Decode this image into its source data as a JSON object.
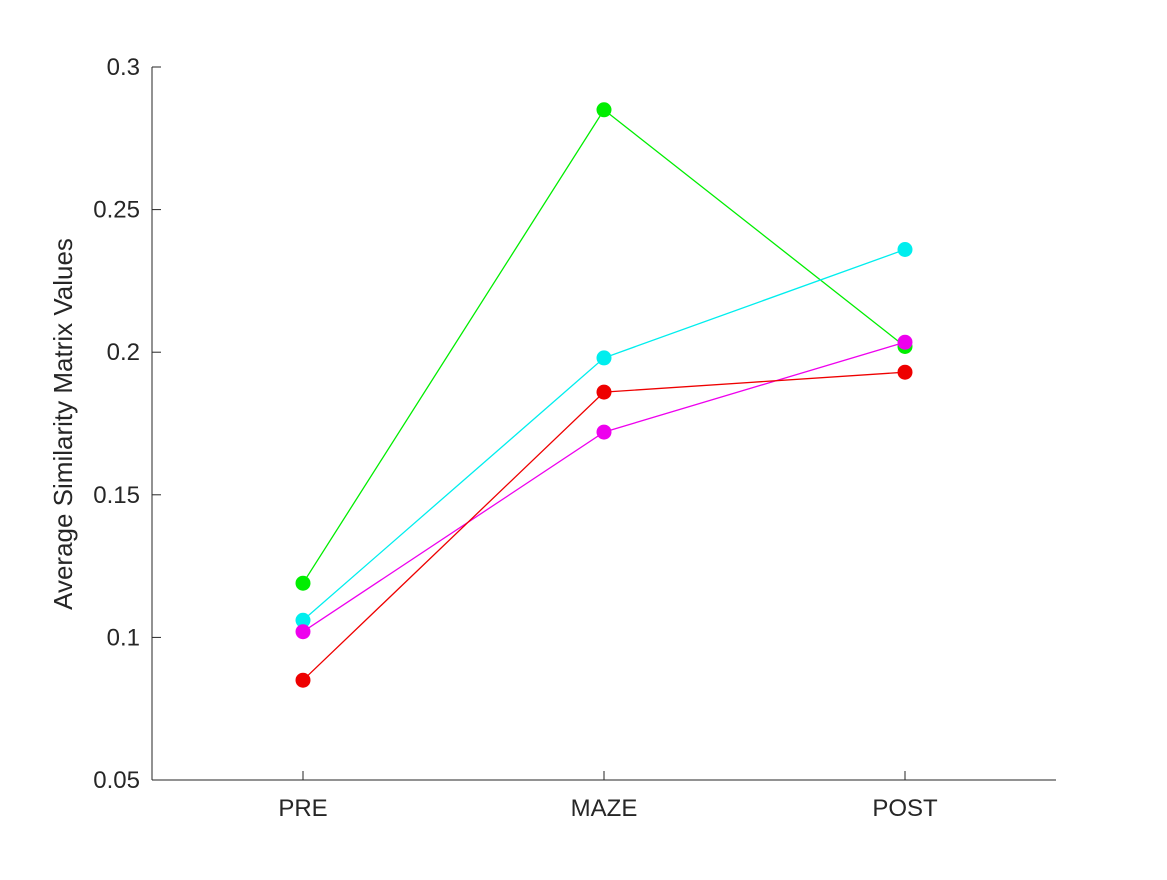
{
  "chart_data": {
    "type": "line",
    "title": "",
    "xlabel": "",
    "ylabel": "Average Similarity Matrix Values",
    "categories": [
      "PRE",
      "MAZE",
      "POST"
    ],
    "ylim": [
      0.05,
      0.3
    ],
    "yticks": [
      0.05,
      0.1,
      0.15,
      0.2,
      0.25,
      0.3
    ],
    "ytick_labels": [
      "0.05",
      "0.1",
      "0.15",
      "0.2",
      "0.25",
      "0.3"
    ],
    "grid": false,
    "legend": "none",
    "axes_color": "#262626",
    "series": [
      {
        "color": "#00ee00",
        "values": [
          0.119,
          0.285,
          0.202
        ]
      },
      {
        "color": "#00eeee",
        "values": [
          0.106,
          0.198,
          0.236
        ]
      },
      {
        "color": "#ee00ee",
        "values": [
          0.102,
          0.172,
          0.2035
        ]
      },
      {
        "color": "#ee0000",
        "values": [
          0.085,
          0.186,
          0.193
        ]
      }
    ]
  }
}
